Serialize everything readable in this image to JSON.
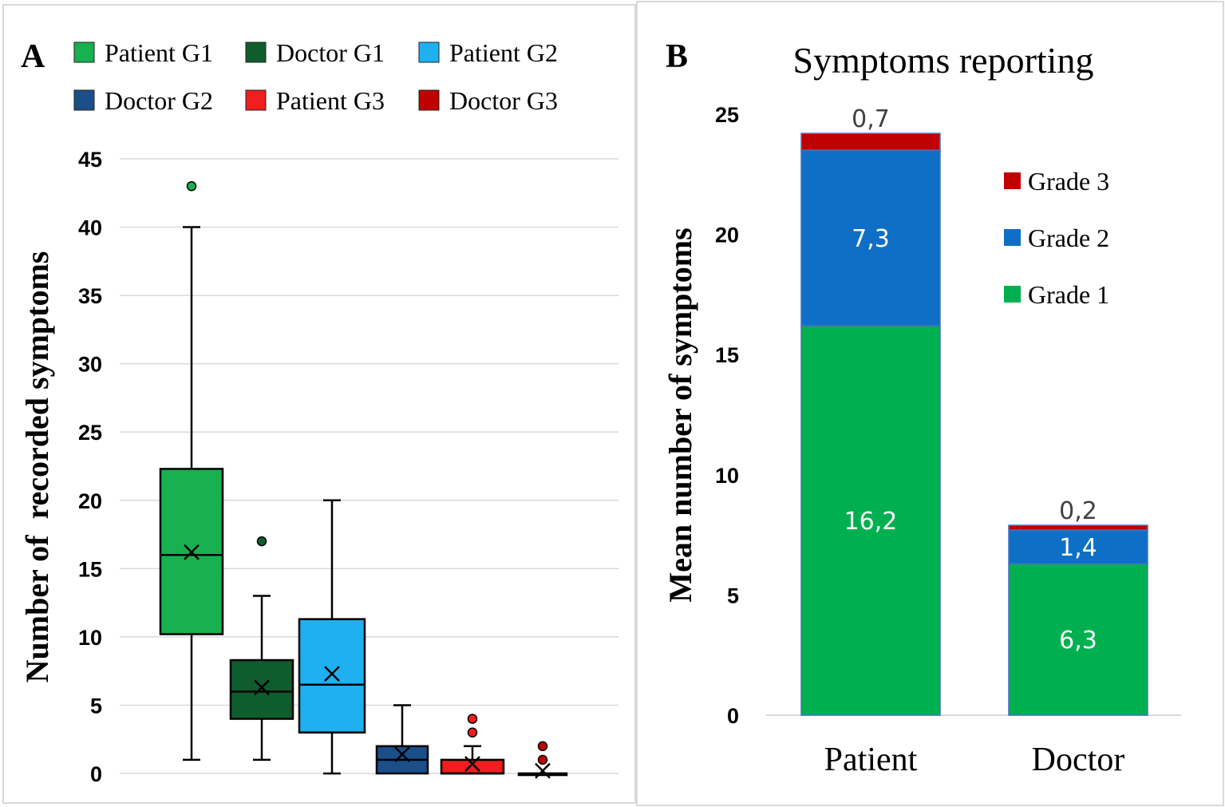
{
  "chart_data": [
    {
      "panel": "A",
      "type": "boxplot",
      "ylabel": "Number of  recorded symptoms",
      "ylim": [
        0,
        45
      ],
      "yticks": [
        "0",
        "5",
        "10",
        "15",
        "20",
        "25",
        "30",
        "35",
        "40",
        "45"
      ],
      "grid": true,
      "legend_position": "top",
      "series": [
        {
          "name": "Patient G1",
          "color": "#17b14f",
          "min": 1,
          "q1": 10.2,
          "median": 16,
          "q3": 22.3,
          "max": 40,
          "mean": 16.2,
          "outliers": [
            43
          ]
        },
        {
          "name": "Doctor G1",
          "color": "#0f5c2e",
          "min": 1,
          "q1": 4,
          "median": 6,
          "q3": 8.3,
          "max": 13,
          "mean": 6.3,
          "outliers": [
            17
          ]
        },
        {
          "name": "Patient  G2",
          "color": "#1eb0f0",
          "min": 0,
          "q1": 3,
          "median": 6.5,
          "q3": 11.3,
          "max": 20,
          "mean": 7.3,
          "outliers": []
        },
        {
          "name": "Doctor G2",
          "color": "#1a4f8a",
          "min": 0,
          "q1": 0,
          "median": 1,
          "q3": 2,
          "max": 5,
          "mean": 1.4,
          "outliers": []
        },
        {
          "name": "Patient G3",
          "color": "#f01e1e",
          "min": 0,
          "q1": 0,
          "median": 0,
          "q3": 1,
          "max": 2,
          "mean": 0.7,
          "outliers": [
            3,
            4
          ]
        },
        {
          "name": "Doctor G3",
          "color": "#c00000",
          "min": 0,
          "q1": 0,
          "median": 0,
          "q3": 0,
          "max": 0,
          "mean": 0.2,
          "outliers": [
            1,
            2
          ]
        }
      ]
    },
    {
      "panel": "B",
      "type": "stacked-bar",
      "title": "Symptoms reporting",
      "ylabel": "Mean number of symptoms",
      "xlabel": "",
      "ylim": [
        0,
        25
      ],
      "yticks": [
        "0",
        "5",
        "10",
        "15",
        "20",
        "25"
      ],
      "categories": [
        "Patient",
        "Doctor"
      ],
      "legend_position": "right",
      "legend_order": [
        "Grade 3",
        "Grade 2",
        "Grade 1"
      ],
      "series": [
        {
          "name": "Grade 1",
          "color": "#00b050",
          "values": [
            16.2,
            6.3
          ],
          "labels": [
            "16,2",
            "6,3"
          ],
          "label_color": "#ffffff"
        },
        {
          "name": "Grade 2",
          "color": "#0f6fc6",
          "values": [
            7.3,
            1.4
          ],
          "labels": [
            "7,3",
            "1,4"
          ],
          "label_color": "#ffffff"
        },
        {
          "name": "Grade 3",
          "color": "#c00000",
          "values": [
            0.7,
            0.2
          ],
          "labels": [
            "0,7",
            "0,2"
          ],
          "label_color": "#404040"
        }
      ]
    }
  ]
}
